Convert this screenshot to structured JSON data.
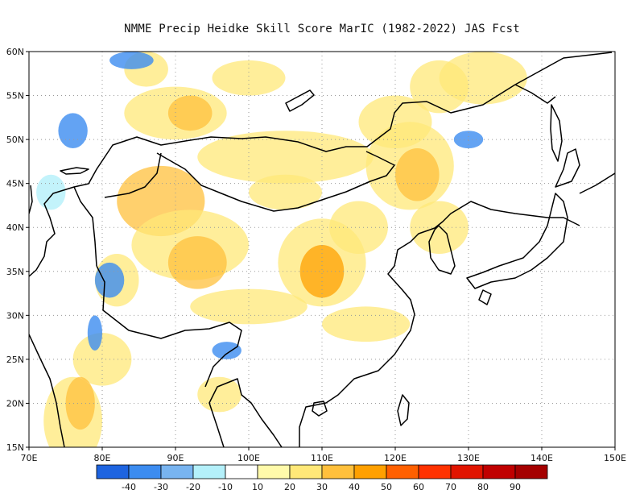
{
  "title": "NMME Precip Heidke Skill Score MarIC (1982-2022) JAS Fcst",
  "map": {
    "lon_labels": [
      "70E",
      "80E",
      "90E",
      "100E",
      "110E",
      "120E",
      "130E",
      "140E",
      "150E"
    ],
    "lat_labels": [
      "15N",
      "20N",
      "25N",
      "30N",
      "35N",
      "40N",
      "45N",
      "50N",
      "55N",
      "60N"
    ],
    "grid": "dotted"
  },
  "colorbar": {
    "colors": [
      "#1e64e0",
      "#3c8cf0",
      "#78b4f0",
      "#b4f0fa",
      "#ffffff",
      "#fffaaa",
      "#ffe878",
      "#ffc03c",
      "#ffa000",
      "#ff6000",
      "#ff3200",
      "#e11400",
      "#c00000",
      "#a50000"
    ],
    "labels": [
      "-40",
      "-30",
      "-20",
      "-10",
      "10",
      "20",
      "30",
      "40",
      "50",
      "60",
      "70",
      "80",
      "90"
    ]
  },
  "colors": {
    "frame": "#000000",
    "grid": "#9a9a9a",
    "coast": "#000000"
  }
}
